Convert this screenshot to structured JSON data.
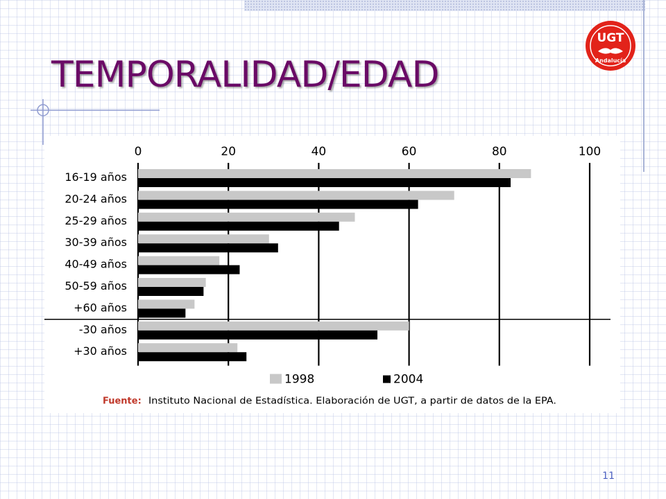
{
  "slide": {
    "title": "TEMPORALIDAD/EDAD",
    "page_number": "11",
    "logo_text": "UGT",
    "logo_subtext": "Andalucía"
  },
  "colors": {
    "title": "#6a0a66",
    "series_1998": "#c8c8c8",
    "series_2004": "#000000",
    "source_label": "#c0392b",
    "logo_red": "#e2231a"
  },
  "chart_data": {
    "type": "bar",
    "orientation": "horizontal",
    "categories": [
      "16-19 años",
      "20-24 años",
      "25-29 años",
      "30-39 años",
      "40-49 años",
      "50-59 años",
      "+60 años",
      "-30 años",
      "+30 años"
    ],
    "series": [
      {
        "name": "1998",
        "values": [
          87,
          70,
          48,
          29,
          18,
          15,
          12.5,
          60,
          22
        ]
      },
      {
        "name": "2004",
        "values": [
          82.5,
          62,
          44.5,
          31,
          22.5,
          14.5,
          10.5,
          53,
          24
        ]
      }
    ],
    "xlim": [
      0,
      100
    ],
    "xticks": [
      "0",
      "20",
      "40",
      "60",
      "80",
      "100"
    ],
    "grid": true,
    "separator_after_category": "+60 años",
    "legend_position": "bottom",
    "source_label": "Fuente:",
    "source_text": "Instituto Nacional de Estadística. Elaboración de UGT, a partir de datos de la EPA."
  }
}
